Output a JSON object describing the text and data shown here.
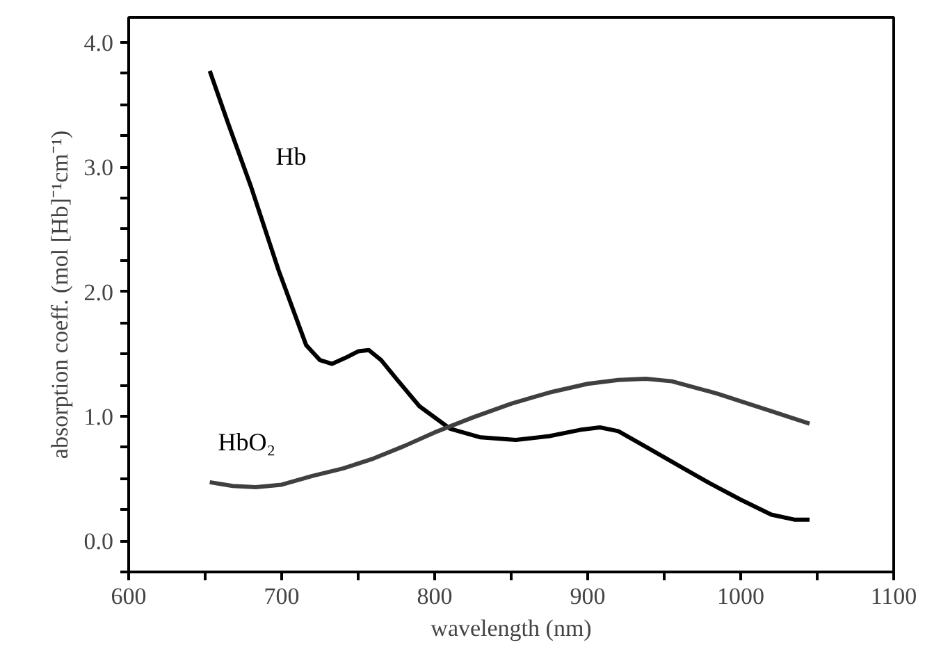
{
  "chart_data": {
    "type": "line",
    "xlabel": "wavelength (nm)",
    "ylabel": "absorption coeff. (mol [Hb]⁻¹cm⁻¹)",
    "xlim": [
      600,
      1100
    ],
    "xticks": [
      600,
      {
        "value": 650,
        "label": null
      },
      700,
      {
        "value": 750,
        "label": null
      },
      800,
      {
        "value": 850,
        "label": null
      },
      900,
      {
        "value": 950,
        "label": null
      },
      1000,
      {
        "value": 1050,
        "label": null
      },
      1100
    ],
    "ylim": [
      -0.25,
      4.2
    ],
    "yticks": [
      {
        "value": -0.25,
        "label": null
      },
      "0.0",
      {
        "value": 0.25,
        "label": null
      },
      {
        "value": 0.5,
        "label": null
      },
      {
        "value": 0.75,
        "label": null
      },
      {
        "value": 1.0,
        "label": "1.0"
      },
      {
        "value": 1.25,
        "label": null
      },
      {
        "value": 1.5,
        "label": null
      },
      {
        "value": 1.75,
        "label": null
      },
      {
        "value": 2.0,
        "label": "2.0"
      },
      {
        "value": 2.25,
        "label": null
      },
      {
        "value": 2.5,
        "label": null
      },
      {
        "value": 2.75,
        "label": null
      },
      {
        "value": 3.0,
        "label": "3.0"
      },
      {
        "value": 3.25,
        "label": null
      },
      {
        "value": 3.5,
        "label": null
      },
      {
        "value": 3.75,
        "label": null
      },
      {
        "value": 4.0,
        "label": "4.0"
      }
    ],
    "grid": false,
    "marker": "none",
    "line_style": "solid",
    "series": [
      {
        "name": "Hb",
        "color": "#000000",
        "x": [
          653,
          665,
          680,
          698,
          716,
          725,
          733,
          742,
          750,
          757,
          765,
          775,
          790,
          810,
          830,
          853,
          875,
          895,
          908,
          920,
          940,
          960,
          980,
          1000,
          1020,
          1035,
          1045
        ],
        "values": [
          3.77,
          3.35,
          2.84,
          2.17,
          1.57,
          1.45,
          1.42,
          1.47,
          1.52,
          1.53,
          1.45,
          1.3,
          1.08,
          0.9,
          0.83,
          0.81,
          0.84,
          0.89,
          0.91,
          0.88,
          0.74,
          0.6,
          0.46,
          0.33,
          0.21,
          0.17,
          0.17
        ]
      },
      {
        "name": "HbO₂",
        "color": "#404040",
        "x": [
          653,
          668,
          683,
          700,
          720,
          740,
          760,
          780,
          800,
          825,
          850,
          875,
          900,
          920,
          938,
          955,
          970,
          985,
          1000,
          1020,
          1045
        ],
        "values": [
          0.47,
          0.44,
          0.43,
          0.45,
          0.52,
          0.58,
          0.66,
          0.76,
          0.87,
          0.99,
          1.1,
          1.19,
          1.26,
          1.29,
          1.3,
          1.28,
          1.23,
          1.18,
          1.12,
          1.04,
          0.94
        ]
      }
    ]
  }
}
